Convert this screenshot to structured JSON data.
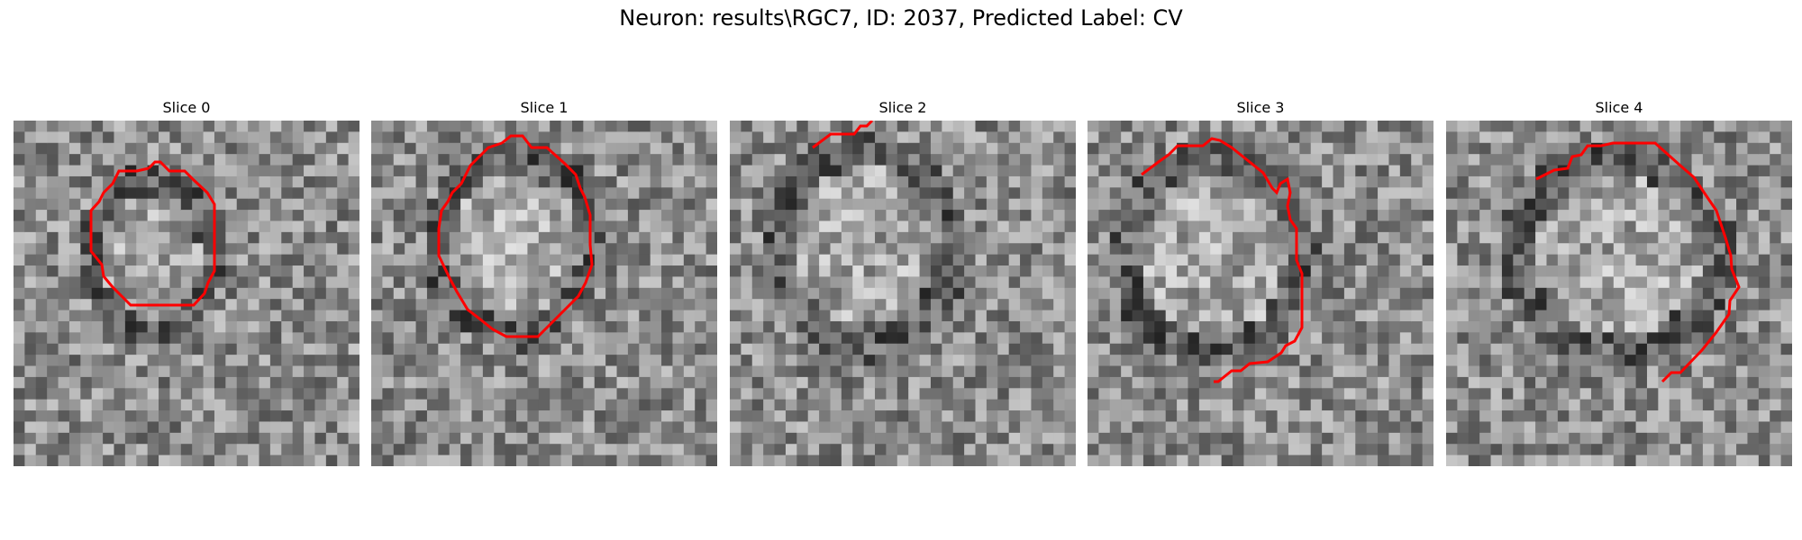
{
  "figure": {
    "title": "Neuron: results\\RGC7, ID: 2037, Predicted Label: CV"
  },
  "colors": {
    "contour": "#ff0000",
    "background": "#ffffff"
  },
  "slices": [
    {
      "title": "Slice 0"
    },
    {
      "title": "Slice 1"
    },
    {
      "title": "Slice 2"
    },
    {
      "title": "Slice 3"
    },
    {
      "title": "Slice 4"
    }
  ]
}
